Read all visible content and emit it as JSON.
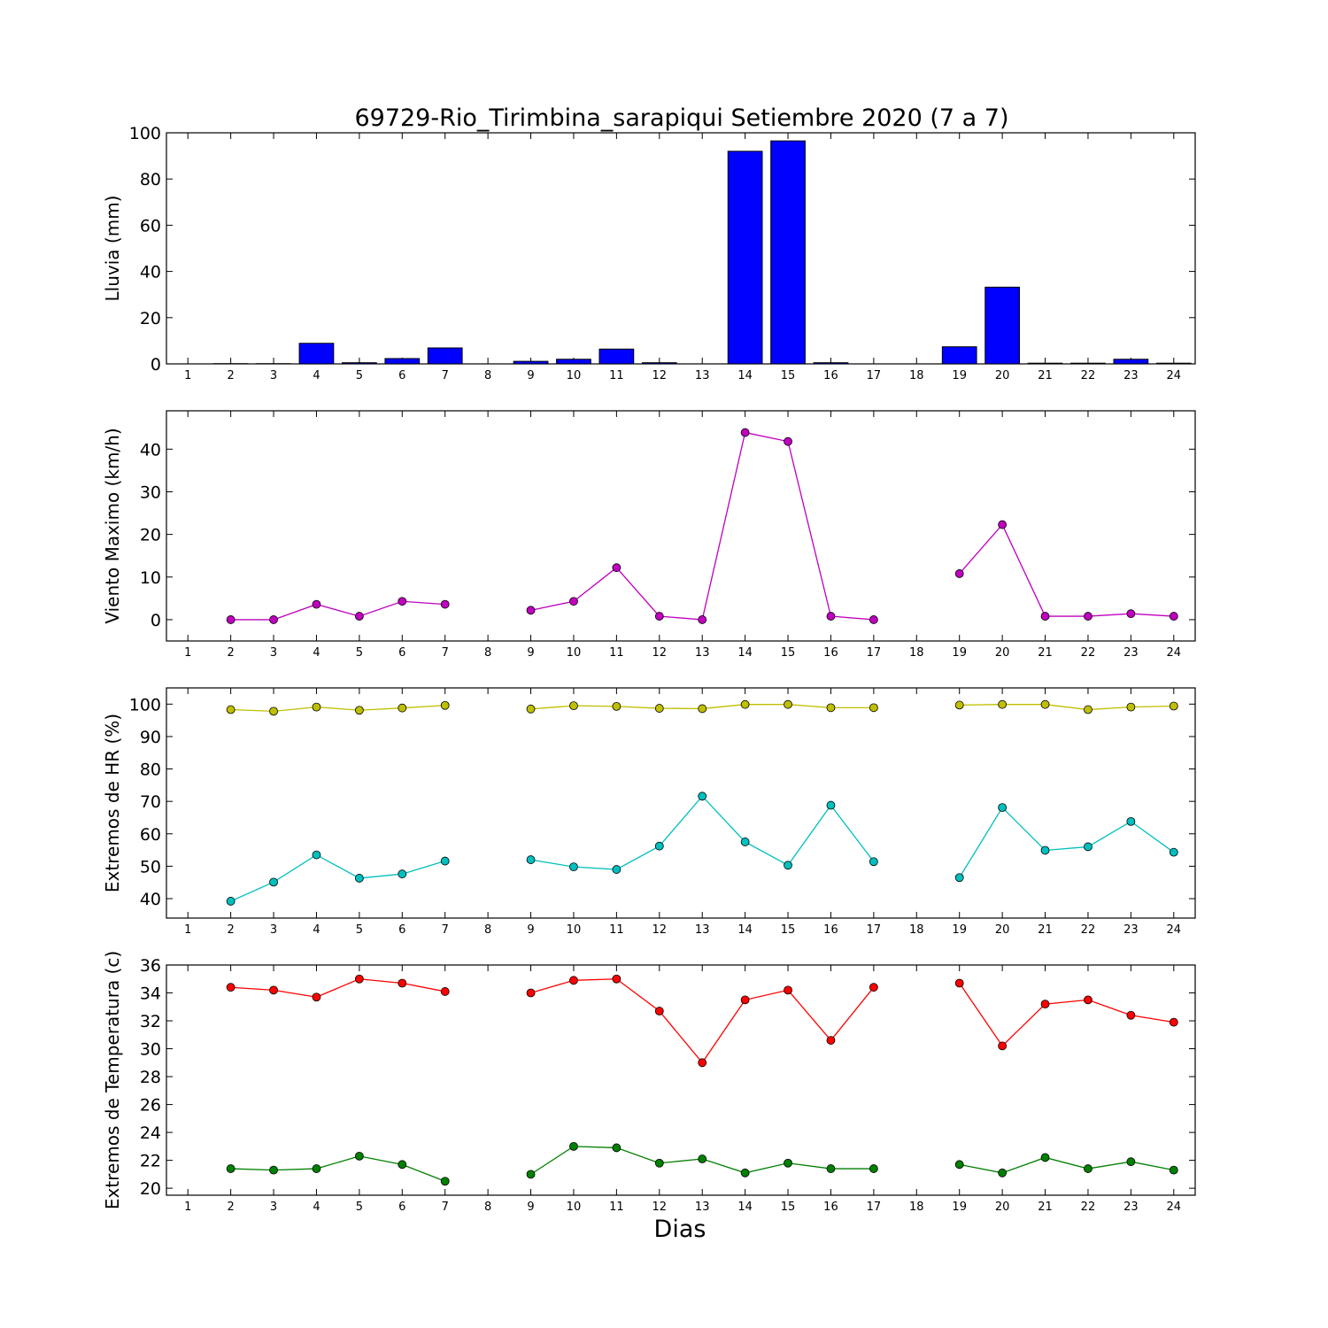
{
  "figure": {
    "title": "69729-Rio_Tirimbina_sarapiqui Setiembre 2020  (7 a 7)",
    "xlabel": "Dias"
  },
  "chart_data": [
    {
      "type": "bar",
      "ylabel": "Lluvia (mm)",
      "ylim": [
        0,
        100
      ],
      "yticks": [
        0,
        20,
        40,
        60,
        80,
        100
      ],
      "xlim": [
        0.5,
        24.5
      ],
      "xticks": [
        "1",
        "2",
        "3",
        "4",
        "5",
        "6",
        "7",
        "8",
        "9",
        "10",
        "11",
        "12",
        "13",
        "14",
        "15",
        "16",
        "17",
        "18",
        "19",
        "20",
        "21",
        "22",
        "23",
        "24"
      ],
      "grid": false,
      "series": [
        {
          "color": "#0000ff",
          "x": [
            2,
            3,
            4,
            5,
            6,
            7,
            9,
            10,
            11,
            12,
            14,
            15,
            16,
            19,
            20,
            21,
            22,
            23,
            24
          ],
          "values": [
            0.1,
            0.1,
            8.9,
            0.5,
            2.3,
            6.9,
            1.1,
            2.0,
            6.4,
            0.5,
            92.0,
            96.5,
            0.5,
            7.4,
            33.2,
            0.3,
            0.3,
            2.0,
            0.3
          ]
        }
      ]
    },
    {
      "type": "line",
      "ylabel": "Viento Maximo (km/h)",
      "ylim": [
        -5,
        49
      ],
      "yticks": [
        0,
        10,
        20,
        30,
        40
      ],
      "xlim": [
        0.5,
        24.5
      ],
      "xticks": [
        "1",
        "2",
        "3",
        "4",
        "5",
        "6",
        "7",
        "8",
        "9",
        "10",
        "11",
        "12",
        "13",
        "14",
        "15",
        "16",
        "17",
        "18",
        "19",
        "20",
        "21",
        "22",
        "23",
        "24"
      ],
      "grid": false,
      "series": [
        {
          "color": "#bf00bf",
          "x": [
            2,
            3,
            4,
            5,
            6,
            7,
            8,
            9,
            10,
            11,
            12,
            13,
            14,
            15,
            16,
            17,
            18,
            19,
            20,
            21,
            22,
            23,
            24
          ],
          "values": [
            0,
            0,
            3.6,
            0.8,
            4.3,
            3.6,
            null,
            2.2,
            4.3,
            12.2,
            0.8,
            0,
            43.9,
            41.8,
            0.8,
            0,
            null,
            10.8,
            22.3,
            0.8,
            0.8,
            1.4,
            0.8
          ]
        }
      ]
    },
    {
      "type": "line",
      "ylabel": "Extremos de HR (%)",
      "ylim": [
        34,
        105
      ],
      "yticks": [
        40,
        50,
        60,
        70,
        80,
        90,
        100
      ],
      "xlim": [
        0.5,
        24.5
      ],
      "xticks": [
        "1",
        "2",
        "3",
        "4",
        "5",
        "6",
        "7",
        "8",
        "9",
        "10",
        "11",
        "12",
        "13",
        "14",
        "15",
        "16",
        "17",
        "18",
        "19",
        "20",
        "21",
        "22",
        "23",
        "24"
      ],
      "grid": false,
      "series": [
        {
          "color": "#bfbf00",
          "x": [
            2,
            3,
            4,
            5,
            6,
            7,
            8,
            9,
            10,
            11,
            12,
            13,
            14,
            15,
            16,
            17,
            18,
            19,
            20,
            21,
            22,
            23,
            24
          ],
          "values": [
            98.3,
            97.8,
            99.1,
            98.1,
            98.8,
            99.6,
            null,
            98.5,
            99.5,
            99.3,
            98.7,
            98.6,
            99.9,
            99.9,
            98.9,
            98.9,
            null,
            99.7,
            99.9,
            99.9,
            98.3,
            99.1,
            99.4
          ]
        },
        {
          "color": "#00bfbf",
          "x": [
            2,
            3,
            4,
            5,
            6,
            7,
            8,
            9,
            10,
            11,
            12,
            13,
            14,
            15,
            16,
            17,
            18,
            19,
            20,
            21,
            22,
            23,
            24
          ],
          "values": [
            39.2,
            45.1,
            53.5,
            46.3,
            47.6,
            51.6,
            null,
            52.0,
            49.8,
            49.0,
            56.2,
            71.6,
            57.5,
            50.3,
            68.8,
            51.4,
            null,
            46.5,
            68.1,
            54.9,
            56.0,
            63.8,
            54.3
          ]
        }
      ]
    },
    {
      "type": "line",
      "ylabel": "Extremos de Temperatura (c)",
      "ylim": [
        19.5,
        36
      ],
      "yticks": [
        20,
        22,
        24,
        26,
        28,
        30,
        32,
        34,
        36
      ],
      "xlim": [
        0.5,
        24.5
      ],
      "xticks": [
        "1",
        "2",
        "3",
        "4",
        "5",
        "6",
        "7",
        "8",
        "9",
        "10",
        "11",
        "12",
        "13",
        "14",
        "15",
        "16",
        "17",
        "18",
        "19",
        "20",
        "21",
        "22",
        "23",
        "24"
      ],
      "grid": false,
      "series": [
        {
          "color": "#ff0000",
          "x": [
            2,
            3,
            4,
            5,
            6,
            7,
            8,
            9,
            10,
            11,
            12,
            13,
            14,
            15,
            16,
            17,
            18,
            19,
            20,
            21,
            22,
            23,
            24
          ],
          "values": [
            34.4,
            34.2,
            33.7,
            35.0,
            34.7,
            34.1,
            null,
            34.0,
            34.9,
            35.0,
            32.7,
            29.0,
            33.5,
            34.2,
            30.6,
            34.4,
            null,
            34.7,
            30.2,
            33.2,
            33.5,
            32.4,
            31.9
          ]
        },
        {
          "color": "#008000",
          "x": [
            2,
            3,
            4,
            5,
            6,
            7,
            8,
            9,
            10,
            11,
            12,
            13,
            14,
            15,
            16,
            17,
            18,
            19,
            20,
            21,
            22,
            23,
            24
          ],
          "values": [
            21.4,
            21.3,
            21.4,
            22.3,
            21.7,
            20.5,
            null,
            21.0,
            23.0,
            22.9,
            21.8,
            22.1,
            21.1,
            21.8,
            21.4,
            21.4,
            null,
            21.7,
            21.1,
            22.2,
            21.4,
            21.9,
            21.3
          ]
        }
      ]
    }
  ]
}
